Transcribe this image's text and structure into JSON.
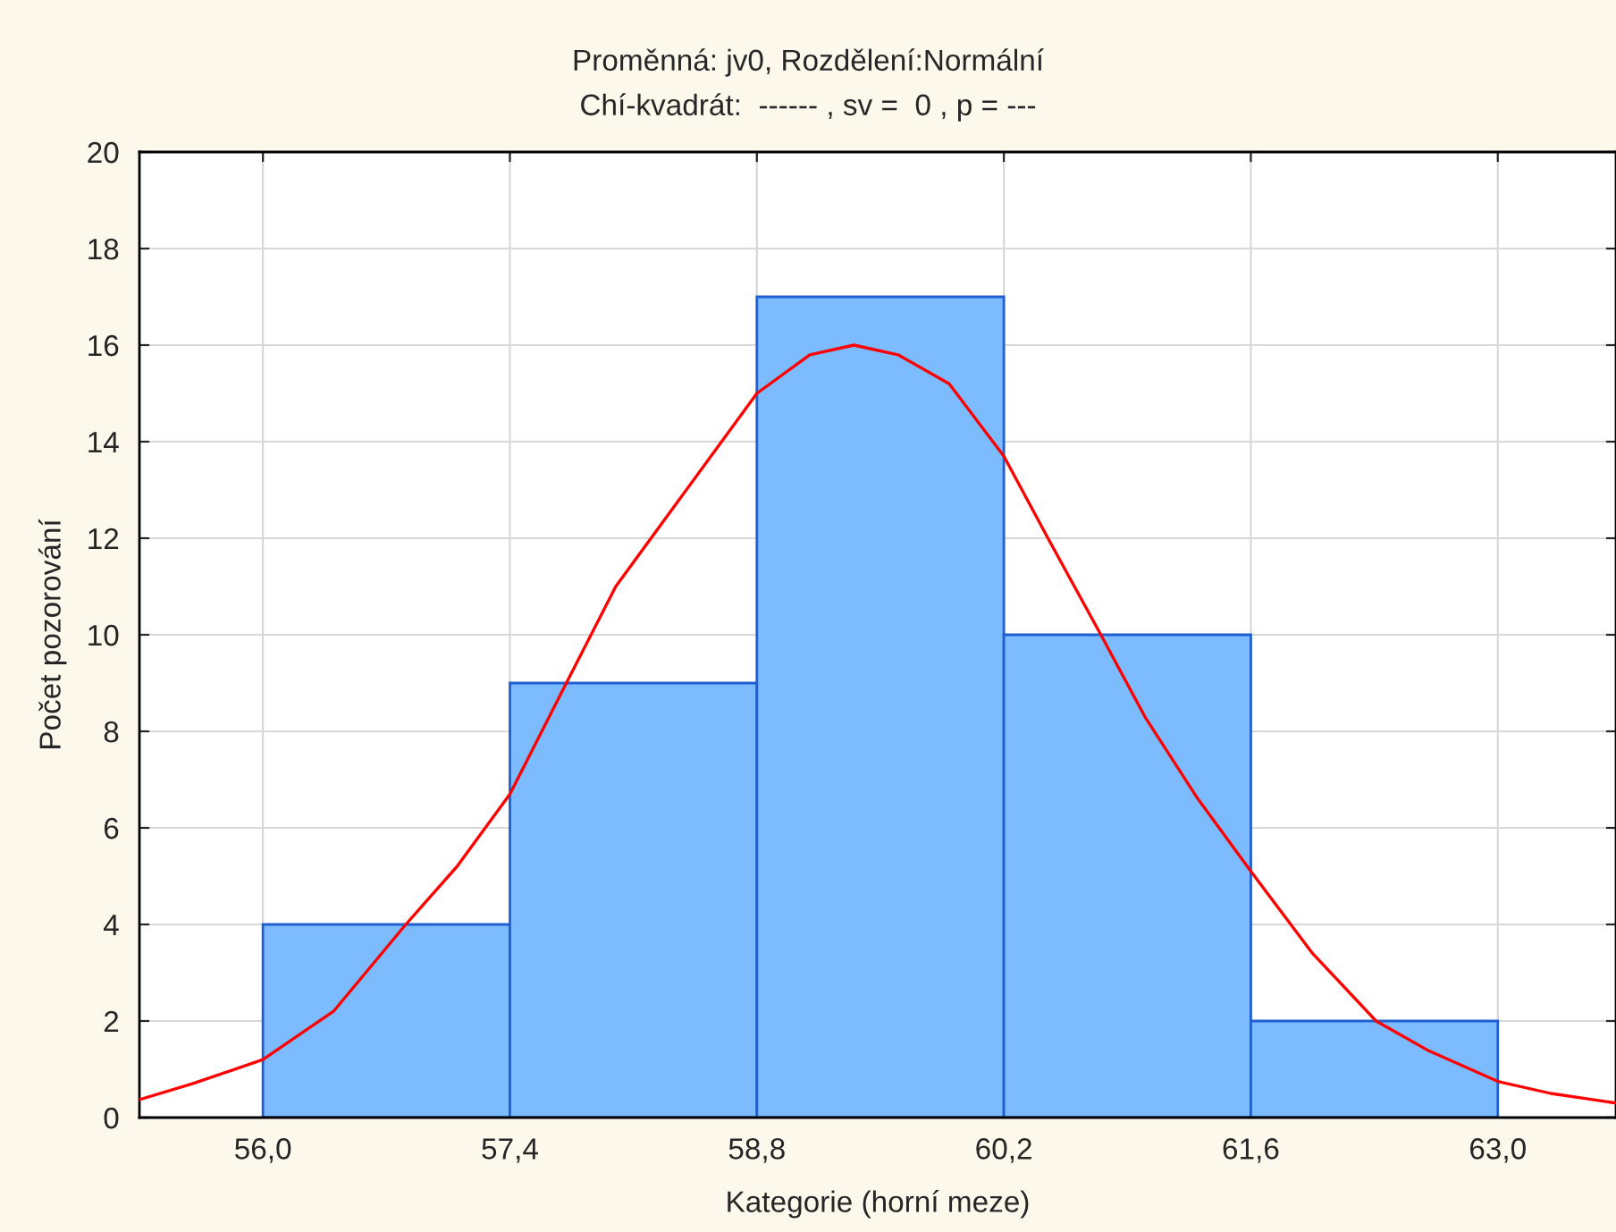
{
  "chart_data": {
    "type": "histogram",
    "title": "Proměnná: jv0, Rozdělení:Normální",
    "subtitle": "Chí-kvadrát:  ------ , sv =  0 , p = ---",
    "xlabel": "Kategorie (horní meze)",
    "ylabel": "Počet pozorování",
    "bins": [
      56.0,
      57.4,
      58.8,
      60.2,
      61.6,
      63.0
    ],
    "values": [
      4,
      9,
      17,
      10,
      2
    ],
    "color": "#7dbbff",
    "series": [
      {
        "type": "line",
        "color": "#ff0000",
        "x": [
          55.3,
          55.6,
          56.0,
          56.4,
          56.81,
          57.1,
          57.4,
          57.72,
          58.0,
          58.36,
          58.8,
          59.1,
          59.35,
          59.6,
          59.89,
          60.2,
          60.45,
          60.75,
          61.0,
          61.3,
          61.6,
          61.95,
          62.31,
          62.6,
          63.0,
          63.3,
          63.67
        ],
        "values": [
          0.37,
          0.7,
          1.2,
          2.2,
          4.0,
          5.2,
          6.7,
          9.0,
          11.0,
          12.8,
          15.0,
          15.8,
          16.0,
          15.8,
          15.2,
          13.7,
          12.0,
          10.0,
          8.3,
          6.6,
          5.1,
          3.4,
          2.0,
          1.4,
          0.75,
          0.5,
          0.3
        ]
      }
    ],
    "xlim": [
      55.3,
      63.67
    ],
    "xticks": [
      {
        "value": 56.0,
        "label": "56,0"
      },
      {
        "value": 57.4,
        "label": "57,4"
      },
      {
        "value": 58.8,
        "label": "58,8"
      },
      {
        "value": 60.2,
        "label": "60,2"
      },
      {
        "value": 61.6,
        "label": "61,6"
      },
      {
        "value": 63.0,
        "label": "63,0"
      }
    ],
    "ylim": [
      0,
      20
    ],
    "yticks": [
      0,
      2,
      4,
      6,
      8,
      10,
      12,
      14,
      16,
      18,
      20
    ],
    "grid": true
  }
}
